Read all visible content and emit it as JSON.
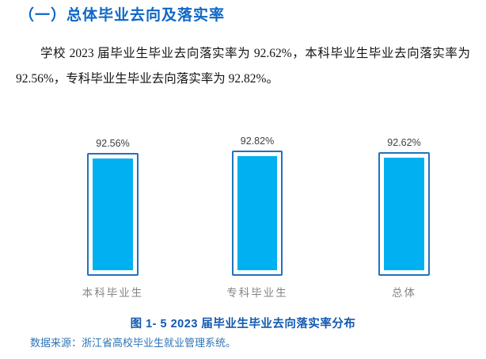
{
  "header": {
    "title": "（一）总体毕业去向及落实率",
    "color": "#0e67c6"
  },
  "paragraph": {
    "text": "学校 2023 届毕业生毕业去向落实率为 92.62%，本科毕业生毕业去向落实率为 92.56%，专科毕业生毕业去向落实率为 92.82%。"
  },
  "chart_data": {
    "type": "bar",
    "categories": [
      "本科毕业生",
      "专科毕业生",
      "总体"
    ],
    "values": [
      92.56,
      92.82,
      92.62
    ],
    "value_labels": [
      "92.56%",
      "92.82%",
      "92.62%"
    ],
    "title": "图 1- 5  2023 届毕业生毕业去向落实率分布",
    "xlabel": "",
    "ylabel": "",
    "ylim_implied": [
      80.35,
      94
    ],
    "grid": false,
    "legend": "none",
    "axes_visible": false,
    "bar_fill_color": "#00b0f0",
    "bar_border_color": "#2172be",
    "value_label_color": "#404040",
    "category_label_color": "#848484"
  },
  "caption": {
    "text": "图 1- 5  2023 届毕业生毕业去向落实率分布",
    "color": "#1159b0"
  },
  "source": {
    "text": "数据来源：浙江省高校毕业生就业管理系统。",
    "color": "#2e74b5"
  }
}
